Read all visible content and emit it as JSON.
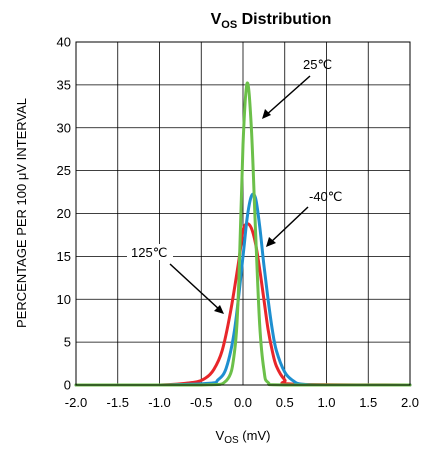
{
  "chart_data": {
    "type": "line",
    "title": {
      "main": "V",
      "sub": "OS",
      "rest": " Distribution"
    },
    "xlabel": {
      "main": "V",
      "sub": "OS",
      "rest": " (mV)"
    },
    "ylabel": "PERCENTAGE PER 100 μV INTERVAL",
    "xlim": [
      -2.0,
      2.0
    ],
    "ylim": [
      0,
      40
    ],
    "xticks": [
      "-2.0",
      "-1.5",
      "-1.0",
      "-0.5",
      "0.0",
      "0.5",
      "1.0",
      "1.5",
      "2.0"
    ],
    "yticks": [
      "0",
      "5",
      "10",
      "15",
      "20",
      "25",
      "30",
      "35",
      "40"
    ],
    "grid": true,
    "series": [
      {
        "name": "125℃",
        "color": "#e8262a",
        "x": [
          -2.0,
          -1.0,
          -0.6,
          -0.45,
          -0.35,
          -0.25,
          -0.15,
          -0.05,
          0.0,
          0.05,
          0.1,
          0.15,
          0.2,
          0.25,
          0.3,
          0.35,
          0.4,
          0.5,
          0.6,
          2.0
        ],
        "y": [
          0,
          0,
          0.3,
          0.8,
          1.8,
          4.0,
          8.5,
          14.5,
          18.0,
          18.8,
          18.3,
          16.5,
          13.5,
          10.0,
          6.5,
          4.0,
          2.2,
          0.6,
          0.1,
          0
        ]
      },
      {
        "name": "-40℃",
        "color": "#1e8fd0",
        "x": [
          -2.0,
          -1.0,
          -0.4,
          -0.3,
          -0.2,
          -0.1,
          0.0,
          0.05,
          0.1,
          0.15,
          0.2,
          0.25,
          0.3,
          0.35,
          0.4,
          0.5,
          0.6,
          0.7,
          1.0,
          2.0
        ],
        "y": [
          0,
          0,
          0.2,
          0.6,
          2.0,
          6.5,
          15.0,
          19.5,
          22.0,
          21.8,
          18.5,
          14.0,
          10.0,
          6.5,
          4.0,
          1.5,
          0.5,
          0.1,
          0,
          0
        ]
      },
      {
        "name": "25℃",
        "color": "#6cc04a",
        "x": [
          -2.0,
          -0.5,
          -0.2,
          -0.1,
          -0.05,
          0.0,
          0.05,
          0.1,
          0.15,
          0.2,
          0.25,
          0.3,
          0.5,
          2.0
        ],
        "y": [
          0,
          0,
          0.5,
          4.0,
          12.0,
          28.0,
          35.2,
          30.0,
          18.0,
          7.0,
          1.8,
          0.3,
          0,
          0
        ]
      }
    ],
    "annotations": [
      {
        "label": "25℃",
        "series": "25℃"
      },
      {
        "label": "-40℃",
        "series": "-40℃"
      },
      {
        "label": "125℃",
        "series": "125℃"
      }
    ]
  }
}
